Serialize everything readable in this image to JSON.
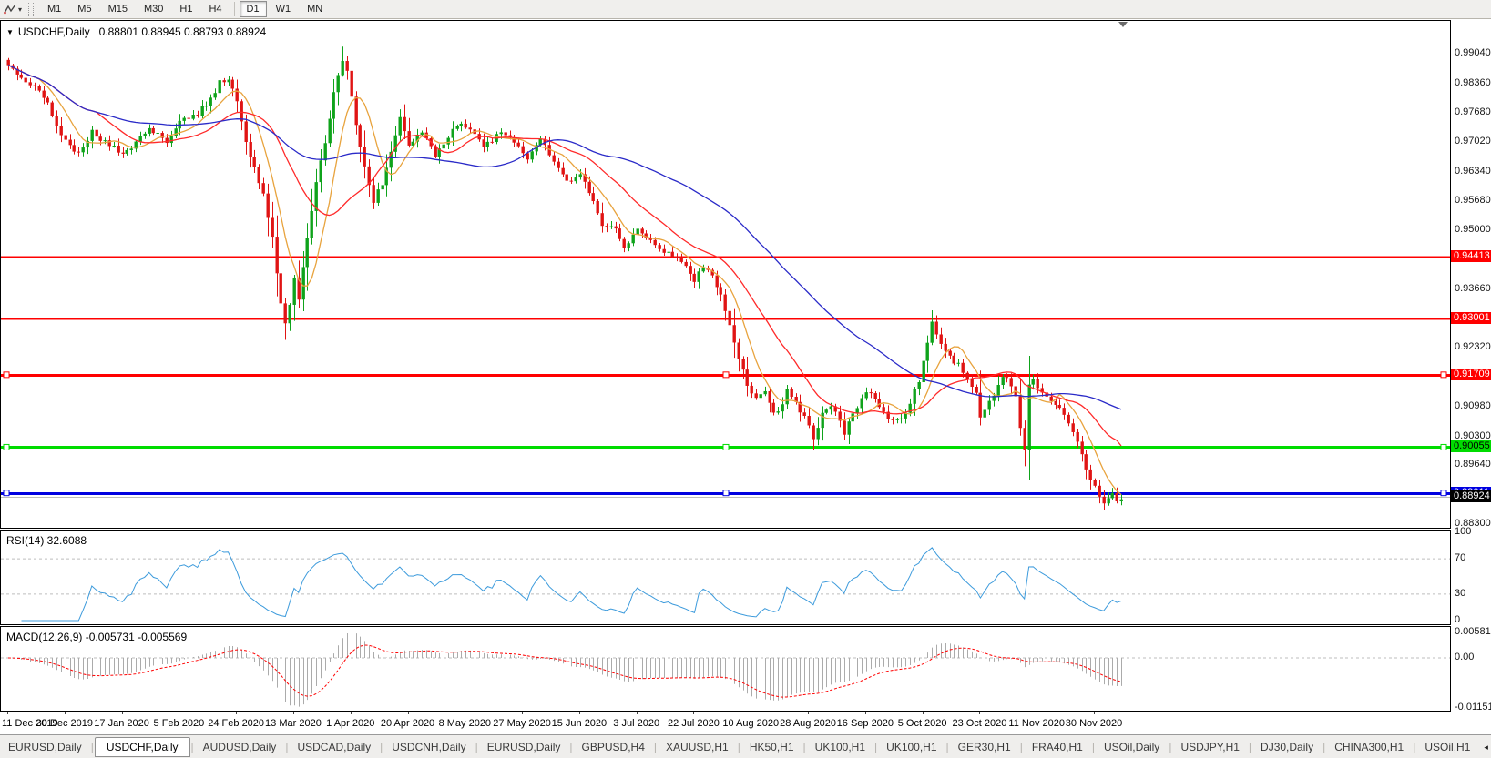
{
  "toolbar": {
    "tool_icon": "line-studies-icon",
    "timeframes": [
      "M1",
      "M5",
      "M15",
      "M30",
      "H1",
      "H4",
      "D1",
      "W1",
      "MN"
    ],
    "active_timeframe": "D1"
  },
  "chart": {
    "collapse_glyph": "▼",
    "title_symbol": "USDCHF,Daily",
    "title_ohlc": "0.88801 0.88945 0.88793 0.88924"
  },
  "rsi_pane": {
    "label": "RSI(14) 32.6088"
  },
  "macd_pane": {
    "label": "MACD(12,26,9) -0.005731 -0.005569"
  },
  "tabs": {
    "items": [
      "EURUSD,Daily",
      "USDCHF,Daily",
      "AUDUSD,Daily",
      "USDCAD,Daily",
      "USDCNH,Daily",
      "EURUSD,Daily",
      "GBPUSD,H4",
      "XAUUSD,H1",
      "HK50,H1",
      "UK100,H1",
      "UK100,H1",
      "GER30,H1",
      "FRA40,H1",
      "USOil,Daily",
      "USDJPY,H1",
      "DJ30,Daily",
      "CHINA300,H1",
      "USOil,H1"
    ],
    "active_index": 1,
    "left_arrow": "◂",
    "right_arrow": "▸"
  },
  "chart_data": {
    "type": "candlestick",
    "symbol": "USDCHF",
    "timeframe": "Daily",
    "ohlc_display": {
      "open": "0.88801",
      "high": "0.88945",
      "low": "0.88793",
      "close": "0.88924"
    },
    "colors": {
      "up": "#0FA31B",
      "down": "#E01414",
      "wick_up": "#0FA31B",
      "wick_down": "#E01414",
      "background": "#FFFFFF",
      "border": "#000000"
    },
    "x_axis_labels": [
      "11 Dec 2019",
      "30 Dec 2019",
      "17 Jan 2020",
      "5 Feb 2020",
      "24 Feb 2020",
      "13 Mar 2020",
      "1 Apr 2020",
      "20 Apr 2020",
      "8 May 2020",
      "27 May 2020",
      "15 Jun 2020",
      "3 Jul 2020",
      "22 Jul 2020",
      "10 Aug 2020",
      "28 Aug 2020",
      "16 Sep 2020",
      "5 Oct 2020",
      "23 Oct 2020",
      "11 Nov 2020",
      "30 Nov 2020"
    ],
    "bars_per_label": 13,
    "y_axis_ticks": [
      "0.99040",
      "0.98360",
      "0.97680",
      "0.97020",
      "0.96340",
      "0.95680",
      "0.95000",
      "0.94340",
      "0.93660",
      "0.92980",
      "0.92320",
      "0.91640",
      "0.90980",
      "0.90300",
      "0.89640",
      "0.88960",
      "0.88300"
    ],
    "horizontal_lines": [
      {
        "price": 0.94413,
        "label": "0.94413",
        "color": "#FF0000",
        "text_color": "#FFFFFF",
        "width": 2,
        "selected": false
      },
      {
        "price": 0.93001,
        "label": "0.93001",
        "color": "#FF0000",
        "text_color": "#FFFFFF",
        "width": 2,
        "selected": false
      },
      {
        "price": 0.91709,
        "label": "0.91709",
        "color": "#FF0000",
        "text_color": "#FFFFFF",
        "width": 3,
        "selected": true
      },
      {
        "price": 0.90055,
        "label": "0.90055",
        "color": "#00DC00",
        "text_color": "#000000",
        "width": 3,
        "selected": true
      },
      {
        "price": 0.89011,
        "label": "0.89011",
        "color": "#0000E0",
        "text_color": "#FFFFFF",
        "width": 3,
        "selected": true
      }
    ],
    "current_price": {
      "value": 0.88924,
      "label": "0.88924",
      "box_color": "#000000",
      "text_color": "#FFFFFF",
      "line_color": "#BDBDBD"
    },
    "moving_averages": [
      {
        "period": 8,
        "color": "#E8A33D"
      },
      {
        "period": 21,
        "color": "#FF2A2A"
      },
      {
        "period": 55,
        "color": "#2A2AC8"
      }
    ],
    "close_keypoints": [
      [
        0,
        0.9875
      ],
      [
        3,
        0.9846
      ],
      [
        6,
        0.9834
      ],
      [
        9,
        0.9788
      ],
      [
        13,
        0.9702
      ],
      [
        16,
        0.9678
      ],
      [
        19,
        0.9724
      ],
      [
        23,
        0.9698
      ],
      [
        26,
        0.9672
      ],
      [
        29,
        0.97
      ],
      [
        32,
        0.9734
      ],
      [
        36,
        0.97
      ],
      [
        39,
        0.9746
      ],
      [
        43,
        0.9768
      ],
      [
        46,
        0.98
      ],
      [
        48,
        0.9838
      ],
      [
        50,
        0.9845
      ],
      [
        52,
        0.979
      ],
      [
        54,
        0.97
      ],
      [
        56,
        0.9638
      ],
      [
        58,
        0.9585
      ],
      [
        60,
        0.948
      ],
      [
        62,
        0.933
      ],
      [
        63,
        0.9292
      ],
      [
        64,
        0.9335
      ],
      [
        65,
        0.939
      ],
      [
        66,
        0.9348
      ],
      [
        68,
        0.948
      ],
      [
        70,
        0.961
      ],
      [
        72,
        0.97
      ],
      [
        74,
        0.9815
      ],
      [
        76,
        0.9888
      ],
      [
        77,
        0.9868
      ],
      [
        79,
        0.9745
      ],
      [
        81,
        0.9645
      ],
      [
        83,
        0.9568
      ],
      [
        85,
        0.9608
      ],
      [
        87,
        0.968
      ],
      [
        89,
        0.9758
      ],
      [
        91,
        0.97
      ],
      [
        94,
        0.9728
      ],
      [
        97,
        0.9668
      ],
      [
        99,
        0.97
      ],
      [
        102,
        0.9744
      ],
      [
        105,
        0.9733
      ],
      [
        108,
        0.969
      ],
      [
        112,
        0.9724
      ],
      [
        115,
        0.9704
      ],
      [
        118,
        0.9663
      ],
      [
        121,
        0.9708
      ],
      [
        124,
        0.9658
      ],
      [
        127,
        0.9612
      ],
      [
        130,
        0.9628
      ],
      [
        132,
        0.9588
      ],
      [
        135,
        0.9512
      ],
      [
        138,
        0.9504
      ],
      [
        140,
        0.9458
      ],
      [
        143,
        0.9508
      ],
      [
        146,
        0.9473
      ],
      [
        149,
        0.9455
      ],
      [
        151,
        0.944
      ],
      [
        154,
        0.9424
      ],
      [
        156,
        0.9386
      ],
      [
        158,
        0.9418
      ],
      [
        160,
        0.9402
      ],
      [
        162,
        0.9348
      ],
      [
        164,
        0.9278
      ],
      [
        166,
        0.9208
      ],
      [
        168,
        0.9148
      ],
      [
        170,
        0.9114
      ],
      [
        172,
        0.9138
      ],
      [
        174,
        0.9082
      ],
      [
        176,
        0.9104
      ],
      [
        177,
        0.9134
      ],
      [
        179,
        0.9108
      ],
      [
        181,
        0.9072
      ],
      [
        183,
        0.9028
      ],
      [
        185,
        0.9082
      ],
      [
        187,
        0.9104
      ],
      [
        189,
        0.9068
      ],
      [
        190,
        0.9038
      ],
      [
        192,
        0.9078
      ],
      [
        194,
        0.9118
      ],
      [
        196,
        0.9134
      ],
      [
        198,
        0.9102
      ],
      [
        200,
        0.9072
      ],
      [
        203,
        0.9068
      ],
      [
        205,
        0.9108
      ],
      [
        207,
        0.9158
      ],
      [
        209,
        0.9238
      ],
      [
        210,
        0.9288
      ],
      [
        211,
        0.9258
      ],
      [
        213,
        0.9222
      ],
      [
        216,
        0.9192
      ],
      [
        218,
        0.9162
      ],
      [
        220,
        0.9132
      ],
      [
        221,
        0.9078
      ],
      [
        223,
        0.9106
      ],
      [
        225,
        0.9152
      ],
      [
        227,
        0.9168
      ],
      [
        229,
        0.9118
      ],
      [
        230,
        0.9052
      ],
      [
        231,
        0.8998
      ],
      [
        232,
        0.9148
      ],
      [
        233,
        0.9162
      ],
      [
        234,
        0.9138
      ],
      [
        236,
        0.9122
      ],
      [
        238,
        0.9104
      ],
      [
        240,
        0.9078
      ],
      [
        242,
        0.9038
      ],
      [
        244,
        0.8988
      ],
      [
        246,
        0.8934
      ],
      [
        248,
        0.8896
      ],
      [
        249,
        0.8876
      ],
      [
        250,
        0.8894
      ],
      [
        251,
        0.8904
      ],
      [
        252,
        0.8878
      ],
      [
        253,
        0.8892
      ]
    ],
    "spike_lows": [
      {
        "index": 62,
        "price": 0.917
      },
      {
        "index": 183,
        "price": 0.9
      },
      {
        "index": 231,
        "price": 0.8985
      },
      {
        "index": 249,
        "price": 0.8868
      }
    ],
    "spike_highs": [
      {
        "index": 76,
        "price": 0.992
      },
      {
        "index": 210,
        "price": 0.9318
      },
      {
        "index": 232,
        "price": 0.9188
      }
    ],
    "indicators": {
      "rsi": {
        "period": 14,
        "current_value": "32.6088",
        "color": "#3D9BDC",
        "axis_labels": [
          {
            "value": 100,
            "text": "100"
          },
          {
            "value": 70,
            "text": "70"
          },
          {
            "value": 30,
            "text": "30"
          },
          {
            "value": 0,
            "text": "0"
          }
        ],
        "dashed_levels": [
          70,
          30
        ],
        "level_color": "#BDBDBD"
      },
      "macd": {
        "fast": 12,
        "slow": 26,
        "signal_period": 9,
        "current_macd": "-0.005731",
        "current_signal": "-0.005569",
        "histogram_color": "#ABABAB",
        "signal_color": "#FF0000",
        "zero_line_color": "#BDBDBD",
        "axis_labels": [
          {
            "value": 0.005818,
            "text": "0.005818"
          },
          {
            "value": 0,
            "text": "0.00"
          },
          {
            "value": -0.011514,
            "text": "-0.011514"
          }
        ]
      }
    }
  }
}
